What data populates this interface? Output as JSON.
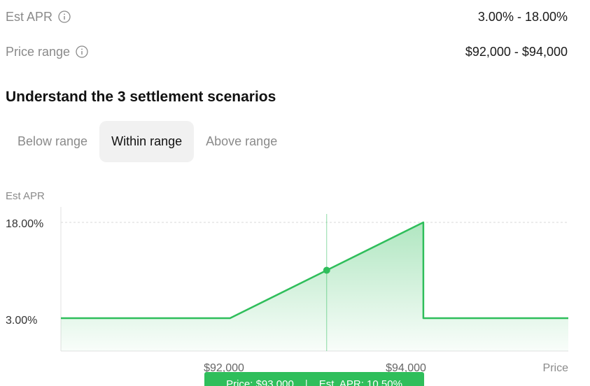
{
  "stats": [
    {
      "label": "Est APR",
      "value": "3.00% - 18.00%"
    },
    {
      "label": "Price range",
      "value": "$92,000 - $94,000"
    }
  ],
  "heading": "Understand the 3 settlement scenarios",
  "tabs": [
    {
      "label": "Below range",
      "active": false
    },
    {
      "label": "Within range",
      "active": true
    },
    {
      "label": "Above range",
      "active": false
    }
  ],
  "colors": {
    "accent": "#2fbe5b",
    "active_tab_bg": "#f1f1f1",
    "muted_text": "#8a8a8a"
  },
  "chart_data": {
    "type": "area",
    "ylabel": "Est APR",
    "xlabel": "Price",
    "x_ticks": [
      "$92,000",
      "$94,000"
    ],
    "y_ticks": [
      "18.00%",
      "3.00%"
    ],
    "x": [
      90250,
      92000,
      94000,
      94000,
      95500
    ],
    "y": [
      3.0,
      3.0,
      18.0,
      3.0,
      3.0
    ],
    "xlim": [
      90250,
      95500
    ],
    "ylim": [
      0,
      18
    ],
    "grid": "horizontal dashed at 18.00%",
    "tooltip": {
      "price_text": "Price: $93,000",
      "separator": "|",
      "apr_text": "Est. APR: 10.50%",
      "price": 93000,
      "apr": 10.5
    }
  }
}
